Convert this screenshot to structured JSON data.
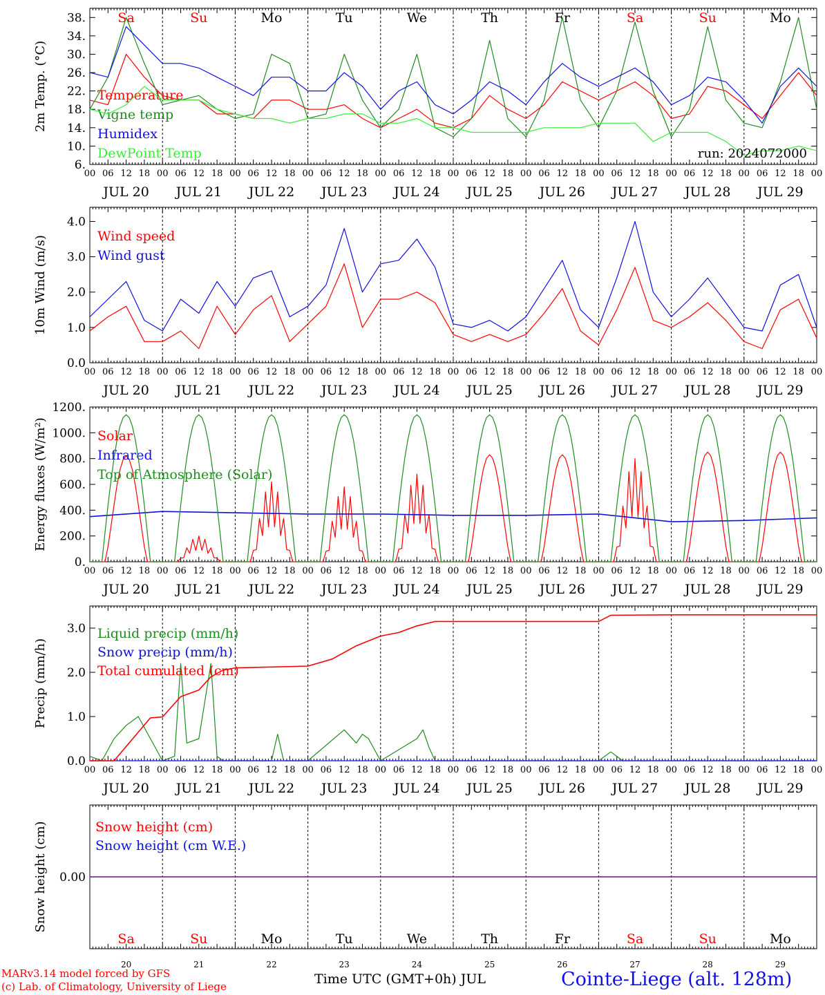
{
  "chart_data": {
    "type": "line",
    "days": [
      "JUL 20",
      "JUL 21",
      "JUL 22",
      "JUL 23",
      "JUL 24",
      "JUL 25",
      "JUL 26",
      "JUL 27",
      "JUL 28",
      "JUL 29"
    ],
    "weekdays": [
      "Sa",
      "Su",
      "Mo",
      "Tu",
      "We",
      "Th",
      "Fr",
      "Sa",
      "Su",
      "Mo"
    ],
    "weekend_flags": [
      true,
      true,
      false,
      false,
      false,
      false,
      false,
      true,
      true,
      false
    ],
    "bottom_day_numbers": [
      "20",
      "21",
      "22",
      "23",
      "24",
      "25",
      "26",
      "27",
      "28",
      "29"
    ],
    "hour_ticks": [
      "00",
      "06",
      "12",
      "18"
    ],
    "colors": {
      "red": "#ff0000",
      "green": "#1f8b1f",
      "blue": "#1010e0",
      "lightgreen": "#33ee33",
      "purple": "#8030a0",
      "axis": "#000000"
    },
    "panels": [
      {
        "ylabel": "2m Temp. (°C)",
        "ylim": [
          6,
          40
        ],
        "yticks": [
          "6.",
          "10.",
          "14.",
          "18.",
          "22.",
          "26.",
          "30.",
          "34.",
          "38."
        ],
        "ytick_values": [
          6,
          10,
          14,
          18,
          22,
          26,
          30,
          34,
          38
        ],
        "show_weekdays_top": true,
        "annotation": "run: 2024072000",
        "series": [
          {
            "name": "Temperature",
            "color": "red",
            "x_hours": [
              0,
              6,
              12,
              18,
              24,
              30,
              36,
              42,
              48,
              54,
              60,
              66,
              72,
              78,
              84,
              90,
              96,
              102,
              108,
              114,
              120,
              126,
              132,
              138,
              144,
              150,
              156,
              162,
              168,
              174,
              180,
              186,
              192,
              198,
              204,
              210,
              216,
              222,
              228,
              234,
              240
            ],
            "values": [
              20,
              19,
              30,
              25,
              21,
              20,
              20,
              17,
              17,
              16,
              20,
              20,
              18,
              18,
              19,
              16,
              14,
              16,
              18,
              15,
              14,
              16,
              21,
              18,
              16,
              19,
              24,
              22,
              20,
              22,
              24,
              21,
              16,
              17,
              23,
              22,
              19,
              16,
              21,
              26,
              21
            ]
          },
          {
            "name": "Vigne temp",
            "color": "green",
            "x_hours": [
              0,
              6,
              12,
              18,
              24,
              30,
              36,
              42,
              48,
              54,
              60,
              66,
              72,
              78,
              84,
              90,
              96,
              102,
              108,
              114,
              120,
              126,
              132,
              138,
              144,
              150,
              156,
              162,
              168,
              174,
              180,
              186,
              192,
              198,
              204,
              210,
              216,
              222,
              228,
              234,
              240
            ],
            "values": [
              18,
              25,
              38,
              28,
              19,
              20,
              21,
              18,
              16,
              17,
              30,
              28,
              16,
              17,
              30,
              20,
              14,
              18,
              30,
              14,
              12,
              16,
              33,
              16,
              12,
              20,
              38,
              20,
              14,
              22,
              37,
              22,
              12,
              18,
              36,
              20,
              15,
              14,
              24,
              38,
              18
            ]
          },
          {
            "name": "Humidex",
            "color": "blue",
            "x_hours": [
              0,
              6,
              12,
              18,
              24,
              30,
              36,
              42,
              48,
              54,
              60,
              66,
              72,
              78,
              84,
              90,
              96,
              102,
              108,
              114,
              120,
              126,
              132,
              138,
              144,
              150,
              156,
              162,
              168,
              174,
              180,
              186,
              192,
              198,
              204,
              210,
              216,
              222,
              228,
              234,
              240
            ],
            "values": [
              26,
              25,
              36,
              32,
              28,
              28,
              27,
              25,
              23,
              21,
              25,
              25,
              22,
              22,
              26,
              23,
              18,
              22,
              24,
              19,
              17,
              20,
              24,
              22,
              19,
              24,
              28,
              25,
              23,
              25,
              27,
              24,
              19,
              21,
              25,
              24,
              20,
              15,
              23,
              27,
              23
            ]
          },
          {
            "name": "DewPoint Temp",
            "color": "lightgreen",
            "x_hours": [
              0,
              6,
              12,
              18,
              24,
              30,
              36,
              42,
              48,
              54,
              60,
              66,
              72,
              78,
              84,
              90,
              96,
              102,
              108,
              114,
              120,
              126,
              132,
              138,
              144,
              150,
              156,
              162,
              168,
              174,
              180,
              186,
              192,
              198,
              204,
              210,
              216,
              222,
              228,
              234,
              240
            ],
            "values": [
              18,
              17,
              19,
              23,
              20,
              20,
              20,
              18,
              17,
              16,
              16,
              15,
              16,
              16,
              17,
              17,
              15,
              15,
              16,
              14,
              14,
              13,
              13,
              13,
              13,
              14,
              14,
              14,
              15,
              15,
              15,
              11,
              13,
              13,
              13,
              11,
              8,
              9,
              9,
              10,
              9
            ]
          }
        ]
      },
      {
        "ylabel": "10m Wind (m/s)",
        "ylim": [
          0,
          4.4
        ],
        "yticks": [
          "0.0",
          "1.0",
          "2.0",
          "3.0",
          "4.0"
        ],
        "ytick_values": [
          0,
          1,
          2,
          3,
          4
        ],
        "series": [
          {
            "name": "Wind speed",
            "color": "red",
            "x_hours": [
              0,
              6,
              12,
              18,
              24,
              30,
              36,
              42,
              48,
              54,
              60,
              66,
              72,
              78,
              84,
              90,
              96,
              102,
              108,
              114,
              120,
              126,
              132,
              138,
              144,
              150,
              156,
              162,
              168,
              174,
              180,
              186,
              192,
              198,
              204,
              210,
              216,
              222,
              228,
              234,
              240
            ],
            "values": [
              0.9,
              1.3,
              1.6,
              0.6,
              0.6,
              0.9,
              0.4,
              1.6,
              0.8,
              1.5,
              1.9,
              0.6,
              1.1,
              1.6,
              2.8,
              1.0,
              1.8,
              1.8,
              2.0,
              1.7,
              0.8,
              0.6,
              0.8,
              0.6,
              0.8,
              1.4,
              2.1,
              0.9,
              0.5,
              1.5,
              2.7,
              1.2,
              1.0,
              1.3,
              1.7,
              1.2,
              0.6,
              0.4,
              1.5,
              1.8,
              0.7
            ]
          },
          {
            "name": "Wind gust",
            "color": "blue",
            "x_hours": [
              0,
              6,
              12,
              18,
              24,
              30,
              36,
              42,
              48,
              54,
              60,
              66,
              72,
              78,
              84,
              90,
              96,
              102,
              108,
              114,
              120,
              126,
              132,
              138,
              144,
              150,
              156,
              162,
              168,
              174,
              180,
              186,
              192,
              198,
              204,
              210,
              216,
              222,
              228,
              234,
              240
            ],
            "values": [
              1.3,
              1.8,
              2.3,
              1.2,
              0.9,
              1.8,
              1.4,
              2.3,
              1.6,
              2.4,
              2.6,
              1.3,
              1.6,
              2.2,
              3.8,
              2.0,
              2.8,
              2.9,
              3.5,
              2.7,
              1.1,
              1.0,
              1.2,
              0.9,
              1.3,
              2.1,
              2.9,
              1.5,
              1.0,
              2.4,
              4.0,
              2.0,
              1.3,
              1.8,
              2.4,
              1.7,
              1.0,
              0.9,
              2.2,
              2.5,
              1.0
            ]
          }
        ]
      },
      {
        "ylabel": "Energy fluxes (W/m²)",
        "ylim": [
          0,
          1200
        ],
        "yticks": [
          "0.",
          "200.",
          "400.",
          "600.",
          "800.",
          "1000.",
          "1200."
        ],
        "ytick_values": [
          0,
          200,
          400,
          600,
          800,
          1000,
          1200
        ],
        "series": [
          {
            "name": "Solar",
            "color": "red",
            "daily_peaks": [
              820,
              200,
              620,
              580,
              680,
              830,
              830,
              800,
              850,
              850
            ],
            "choppy": [
              false,
              true,
              true,
              true,
              true,
              false,
              false,
              true,
              false,
              false
            ]
          },
          {
            "name": "Infrared",
            "color": "blue",
            "x_hours": [
              0,
              24,
              48,
              72,
              96,
              120,
              144,
              168,
              192,
              216,
              240
            ],
            "values": [
              350,
              390,
              380,
              370,
              370,
              360,
              360,
              370,
              310,
              320,
              340
            ]
          },
          {
            "name": "Top of Atmosphere (Solar)",
            "color": "green",
            "daily_peak": 1140,
            "day_start_hour": 4,
            "day_end_hour": 20
          }
        ]
      },
      {
        "ylabel": "Precip (mm/h)",
        "ylim": [
          0,
          3.5
        ],
        "yticks": [
          "0.0",
          "1.0",
          "2.0",
          "3.0"
        ],
        "ytick_values": [
          0,
          1,
          2,
          3
        ],
        "series": [
          {
            "name": "Liquid precip (mm/h)",
            "color": "green",
            "x_hours": [
              0,
              4,
              8,
              12,
              16,
              20,
              24,
              28,
              30,
              32,
              36,
              40,
              42,
              44,
              48,
              60,
              62,
              64,
              72,
              84,
              88,
              90,
              92,
              96,
              108,
              110,
              112,
              114,
              168,
              172,
              174,
              176,
              240
            ],
            "values": [
              0.1,
              0,
              0.5,
              0.8,
              1.0,
              0.5,
              0,
              0.1,
              2.2,
              0.4,
              0.5,
              2.2,
              0.1,
              0,
              0,
              0,
              0.6,
              0,
              0,
              0.7,
              0.4,
              0.6,
              0.5,
              0,
              0.5,
              0.7,
              0.3,
              0,
              0,
              0.2,
              0.1,
              0,
              0
            ]
          },
          {
            "name": "Snow precip (mm/h)",
            "color": "blue",
            "x_hours": [
              0,
              240
            ],
            "values": [
              0,
              0
            ]
          },
          {
            "name": "Total cumulated (cm)",
            "color": "red",
            "x_hours": [
              0,
              8,
              20,
              24,
              30,
              36,
              40,
              44,
              48,
              60,
              72,
              80,
              88,
              96,
              102,
              108,
              114,
              120,
              144,
              168,
              172,
              192,
              216,
              240
            ],
            "values": [
              0,
              0,
              0.97,
              0.99,
              1.45,
              1.6,
              1.9,
              2.05,
              2.1,
              2.12,
              2.14,
              2.3,
              2.6,
              2.82,
              2.9,
              3.05,
              3.15,
              3.15,
              3.15,
              3.15,
              3.29,
              3.3,
              3.3,
              3.3
            ]
          }
        ]
      },
      {
        "ylabel": "Snow height (cm)",
        "ylim": [
          -1,
          1
        ],
        "yticks": [
          "0.00"
        ],
        "ytick_values": [
          0
        ],
        "show_weekdays_bottom": true,
        "series": [
          {
            "name": "Snow height (cm)",
            "color": "red",
            "x_hours": [
              0,
              240
            ],
            "values": [
              0,
              0
            ]
          },
          {
            "name": "Snow height (cm W.E.)",
            "color": "blue",
            "x_hours": [
              0,
              240
            ],
            "values": [
              0,
              0
            ]
          }
        ]
      }
    ]
  },
  "footer": {
    "model_line": "MARv3.14 model forced by GFS",
    "copyright_line": "(c) Lab. of Climatology, University of Liege",
    "xlabel": "Time UTC (GMT+0h) JUL",
    "station": "Cointe-Liege (alt. 128m)"
  }
}
